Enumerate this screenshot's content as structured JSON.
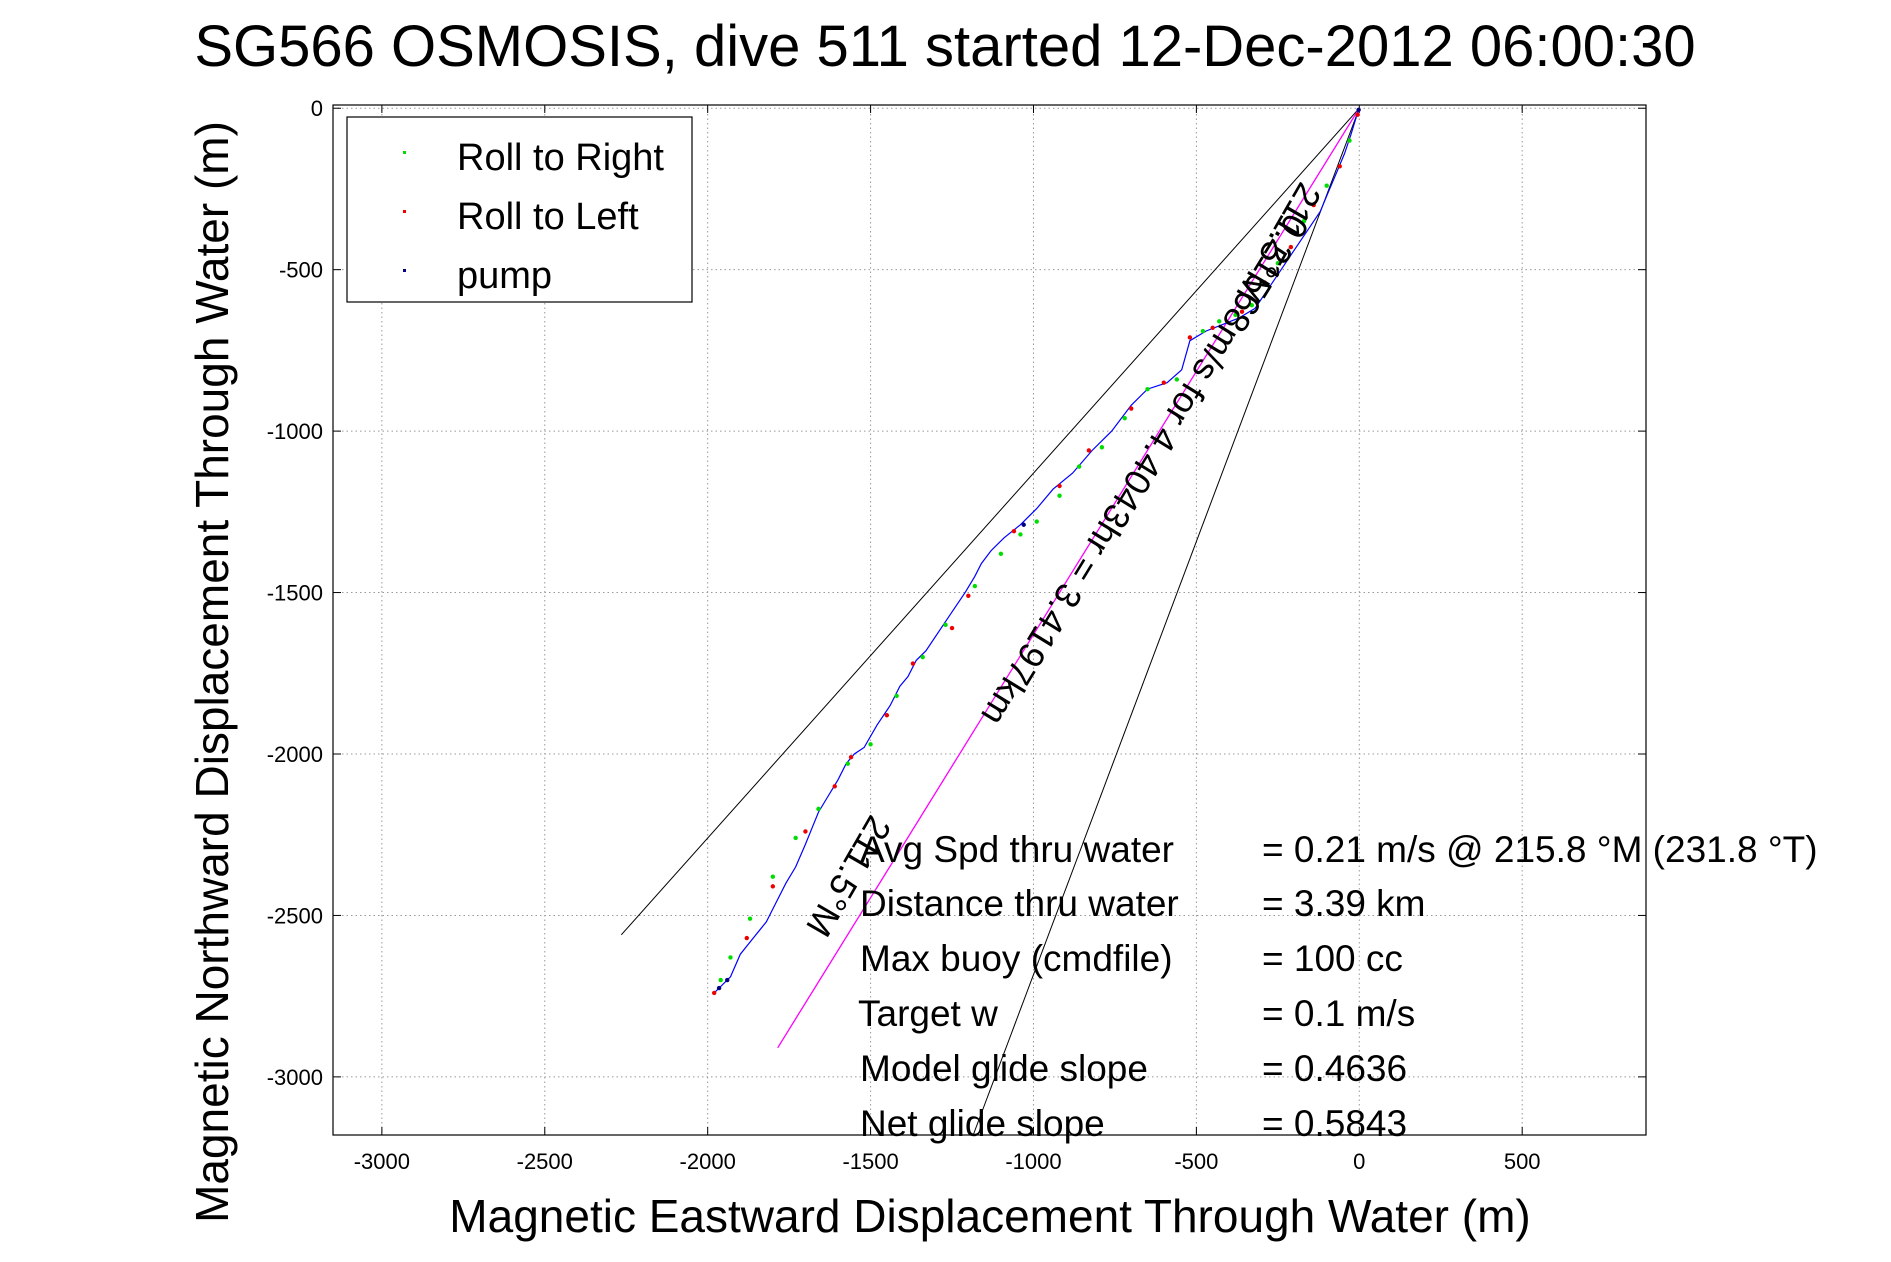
{
  "chart_data": {
    "type": "line",
    "title": "SG566 OSMOSIS, dive 511 started 12-Dec-2012 06:00:30",
    "xlabel": "Magnetic Eastward Displacement Through Water (m)",
    "ylabel": "Magnetic Northward Displacement Through Water (m)",
    "xlim": [
      -3150,
      880
    ],
    "ylim": [
      -3180,
      10
    ],
    "xticks": [
      -3000,
      -2500,
      -2000,
      -1500,
      -1000,
      -500,
      0,
      500
    ],
    "yticks": [
      0,
      -500,
      -1000,
      -1500,
      -2000,
      -2500,
      -3000
    ],
    "grid": true,
    "legend_position": "top-left",
    "legend": [
      {
        "label": "Roll to Right",
        "color": "#00dd00"
      },
      {
        "label": "Roll to Left",
        "color": "#ee0000"
      },
      {
        "label": "pump",
        "color": "#000080"
      }
    ],
    "track": {
      "color": "#0000ff",
      "x": [
        0,
        -10,
        -25,
        -45,
        -70,
        -95,
        -120,
        -160,
        -200,
        -240,
        -280,
        -320,
        -370,
        -420,
        -470,
        -520,
        -545,
        -590,
        -650,
        -700,
        -760,
        -820,
        -880,
        -940,
        -990,
        -1040,
        -1090,
        -1130,
        -1160,
        -1180,
        -1210,
        -1250,
        -1290,
        -1330,
        -1360,
        -1385,
        -1410,
        -1440,
        -1480,
        -1520,
        -1550,
        -1575,
        -1600,
        -1630,
        -1660,
        -1680,
        -1700,
        -1730,
        -1760,
        -1790,
        -1820,
        -1860,
        -1900,
        -1930,
        -1960,
        -1980
      ],
      "y": [
        0,
        -30,
        -80,
        -140,
        -200,
        -260,
        -320,
        -380,
        -440,
        -500,
        -560,
        -620,
        -650,
        -670,
        -690,
        -720,
        -810,
        -850,
        -870,
        -920,
        -1000,
        -1060,
        -1130,
        -1180,
        -1240,
        -1290,
        -1330,
        -1370,
        -1410,
        -1450,
        -1500,
        -1560,
        -1620,
        -1680,
        -1710,
        -1760,
        -1790,
        -1850,
        -1910,
        -1980,
        -2000,
        -2030,
        -2080,
        -2130,
        -2180,
        -2230,
        -2280,
        -2350,
        -2400,
        -2460,
        -2520,
        -2570,
        -2620,
        -2690,
        -2720,
        -2740
      ]
    },
    "roll_right": {
      "x": [
        -30,
        -100,
        -170,
        -250,
        -330,
        -380,
        -430,
        -480,
        -560,
        -650,
        -720,
        -790,
        -860,
        -920,
        -990,
        -1040,
        -1100,
        -1180,
        -1270,
        -1340,
        -1420,
        -1500,
        -1570,
        -1660,
        -1730,
        -1800,
        -1870,
        -1930,
        -1960
      ],
      "y": [
        -100,
        -240,
        -350,
        -480,
        -610,
        -640,
        -660,
        -690,
        -840,
        -870,
        -960,
        -1050,
        -1110,
        -1200,
        -1280,
        -1320,
        -1380,
        -1480,
        -1600,
        -1700,
        -1820,
        -1970,
        -2030,
        -2170,
        -2260,
        -2380,
        -2510,
        -2630,
        -2700
      ]
    },
    "roll_left": {
      "x": [
        -5,
        -60,
        -140,
        -210,
        -290,
        -360,
        -450,
        -520,
        -600,
        -700,
        -830,
        -920,
        -1060,
        -1200,
        -1250,
        -1370,
        -1450,
        -1560,
        -1610,
        -1700,
        -1800,
        -1880,
        -1980
      ],
      "y": [
        -20,
        -180,
        -300,
        -430,
        -540,
        -630,
        -680,
        -710,
        -850,
        -930,
        -1060,
        -1170,
        -1310,
        -1510,
        -1610,
        -1720,
        -1880,
        -2010,
        -2100,
        -2240,
        -2410,
        -2570,
        -2740
      ]
    },
    "pump": {
      "x": [
        -1030,
        -1940,
        -1965,
        -2
      ],
      "y": [
        -1290,
        -2700,
        -2725,
        -5
      ]
    },
    "mean_line": {
      "color": "#ff00ff",
      "x": [
        0,
        -1785
      ],
      "y": [
        0,
        -2910
      ]
    },
    "cone_lines": [
      {
        "x": [
          0,
          -2265
        ],
        "y": [
          0,
          -2560
        ]
      },
      {
        "x": [
          0,
          -1185
        ],
        "y": [
          0,
          -3180
        ]
      }
    ],
    "rotated_labels": [
      {
        "text": "211.5°M",
        "x": -280,
        "y": -400,
        "angle": 120
      },
      {
        "text": "0.21568m/s for 4.4043hr = 3.4197km",
        "x": -690,
        "y": -1100,
        "angle": 121.5
      },
      {
        "text": "211.5°M",
        "x": -1600,
        "y": -2360,
        "angle": 120
      }
    ],
    "annotations": [
      {
        "label": "Avg Spd thru water",
        "value": "=  0.21 m/s @ 215.8 °M (231.8 °T)"
      },
      {
        "label": "Distance thru water",
        "value": "=  3.39 km"
      },
      {
        "label": "Max buoy (cmdfile)",
        "value": "= 100 cc"
      },
      {
        "label": "Target w",
        "value": "= 0.1 m/s"
      },
      {
        "label": "Model glide slope",
        "value": "= 0.4636"
      },
      {
        "label": "Net glide slope",
        "value": "= 0.5843"
      }
    ]
  }
}
